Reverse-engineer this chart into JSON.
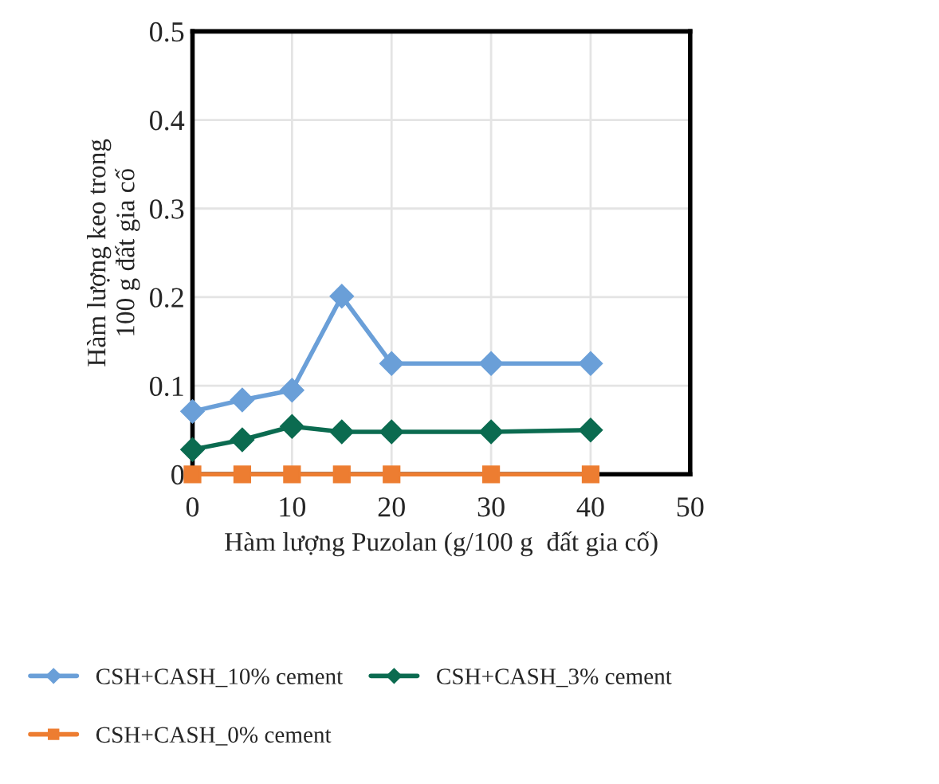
{
  "chart_data": {
    "type": "line",
    "xlabel": "Hàm lượng Puzolan (g/100 g  đất gia cố)",
    "ylabel": "Hàm lượng keo trong\n100 g đất gia cố",
    "x": [
      0,
      5,
      10,
      15,
      20,
      30,
      40
    ],
    "series": [
      {
        "name": "CSH+CASH_10% cement",
        "color": "#6a9fd8",
        "marker": "diamond",
        "values": [
          0.071,
          0.084,
          0.095,
          0.201,
          0.125,
          0.125,
          0.125
        ]
      },
      {
        "name": "CSH+CASH_3% cement",
        "color": "#0b6b50",
        "marker": "diamond",
        "values": [
          0.028,
          0.039,
          0.054,
          0.048,
          0.048,
          0.048,
          0.05
        ]
      },
      {
        "name": "CSH+CASH_0% cement",
        "color": "#ed7d31",
        "marker": "square",
        "values": [
          0,
          0,
          0,
          0,
          0,
          0,
          0
        ]
      }
    ],
    "xlim": [
      0,
      50
    ],
    "xticks": [
      0,
      10,
      20,
      30,
      40,
      50
    ],
    "ylim": [
      0,
      0.5
    ],
    "yticks": [
      0,
      0.1,
      0.2,
      0.3,
      0.4,
      0.5
    ],
    "grid": true,
    "legend": "bottom"
  }
}
